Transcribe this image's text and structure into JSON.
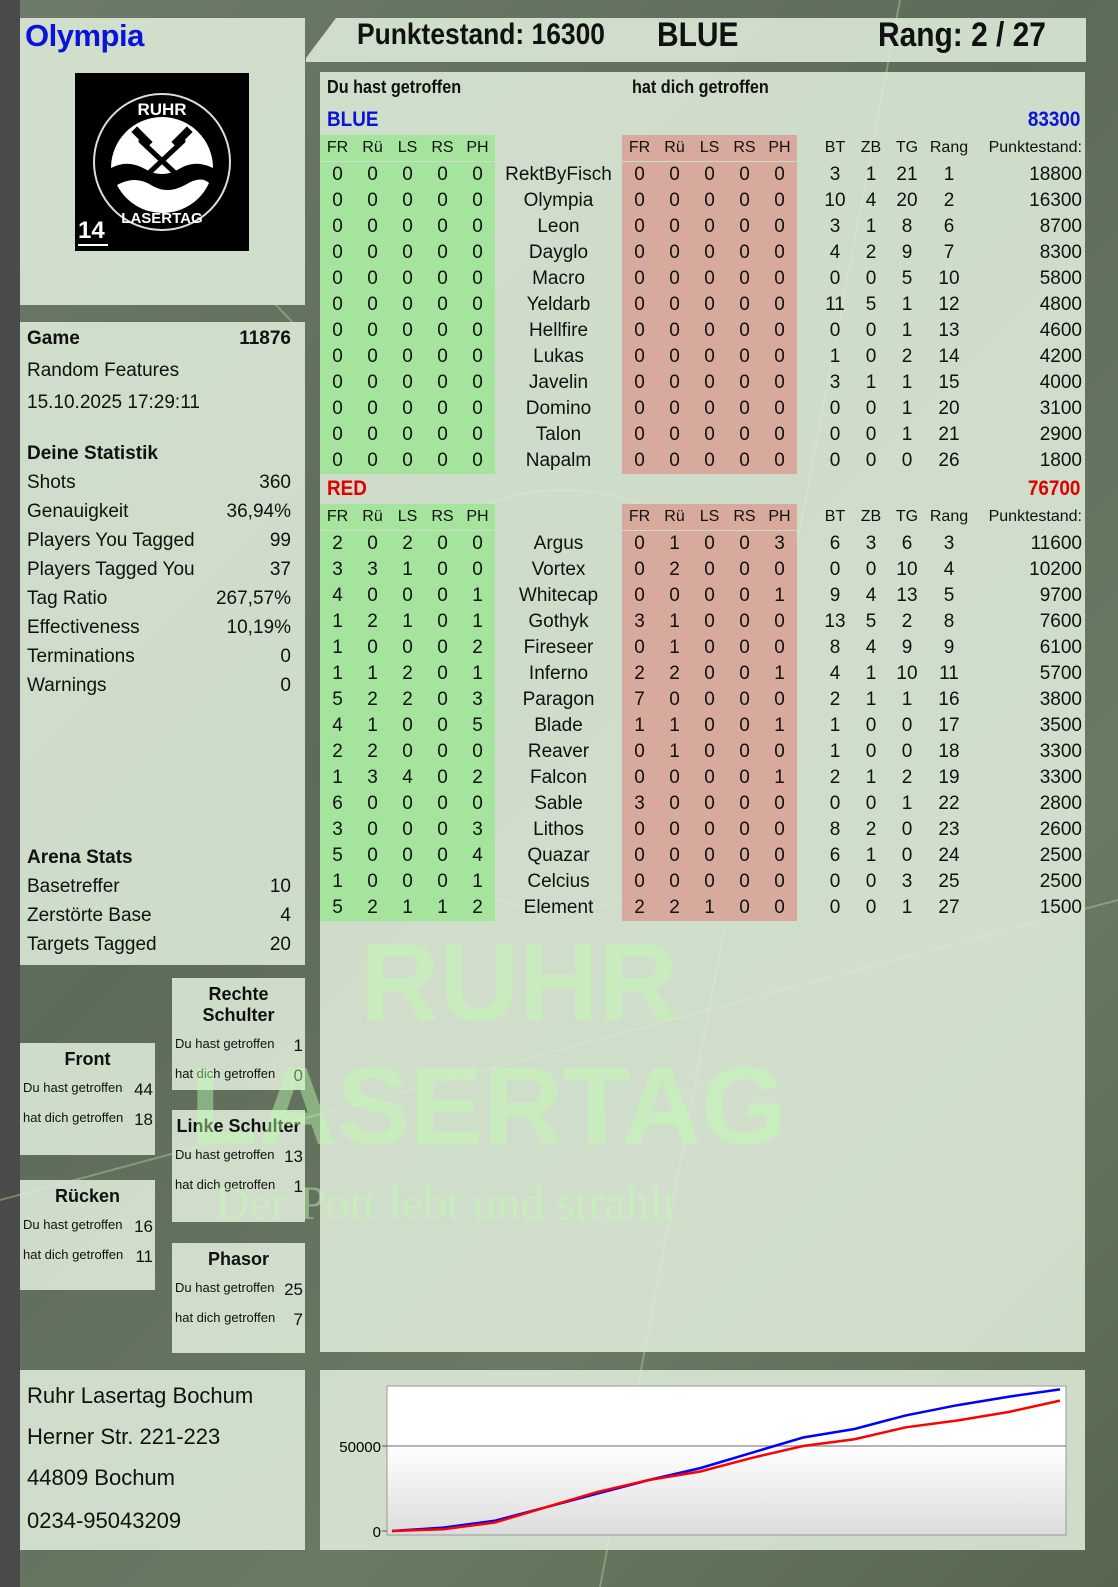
{
  "player": {
    "name": "Olympia",
    "score_label": "Punktestand: 16300",
    "team": "BLUE",
    "rank_label": "Rang: 2 / 27"
  },
  "logo": {
    "top": "RUHR",
    "bottom": "LASERTAG",
    "number": "14"
  },
  "watermark": {
    "line1": "RUHR",
    "line2": "LASERTAG",
    "slogan": "Der Pott lebt und strahlt"
  },
  "table": {
    "you_hit": "Du hast getroffen",
    "hit_you": "hat dich getroffen",
    "hit_cols": [
      "FR",
      "Rü",
      "LS",
      "RS",
      "PH"
    ],
    "stat_cols": [
      "BT",
      "ZB",
      "TG",
      "Rang",
      "Punktestand:"
    ],
    "teams": [
      {
        "name": "BLUE",
        "total": "83300",
        "color": "#0a14d8",
        "players": [
          {
            "name": "RektByFisch",
            "hit": [
              0,
              0,
              0,
              0,
              0
            ],
            "got": [
              0,
              0,
              0,
              0,
              0
            ],
            "stats": [
              3,
              1,
              21,
              1,
              18800
            ]
          },
          {
            "name": "Olympia",
            "hit": [
              0,
              0,
              0,
              0,
              0
            ],
            "got": [
              0,
              0,
              0,
              0,
              0
            ],
            "stats": [
              10,
              4,
              20,
              2,
              16300
            ]
          },
          {
            "name": "Leon",
            "hit": [
              0,
              0,
              0,
              0,
              0
            ],
            "got": [
              0,
              0,
              0,
              0,
              0
            ],
            "stats": [
              3,
              1,
              8,
              6,
              8700
            ]
          },
          {
            "name": "Dayglo",
            "hit": [
              0,
              0,
              0,
              0,
              0
            ],
            "got": [
              0,
              0,
              0,
              0,
              0
            ],
            "stats": [
              4,
              2,
              9,
              7,
              8300
            ]
          },
          {
            "name": "Macro",
            "hit": [
              0,
              0,
              0,
              0,
              0
            ],
            "got": [
              0,
              0,
              0,
              0,
              0
            ],
            "stats": [
              0,
              0,
              5,
              10,
              5800
            ]
          },
          {
            "name": "Yeldarb",
            "hit": [
              0,
              0,
              0,
              0,
              0
            ],
            "got": [
              0,
              0,
              0,
              0,
              0
            ],
            "stats": [
              11,
              5,
              1,
              12,
              4800
            ]
          },
          {
            "name": "Hellfire",
            "hit": [
              0,
              0,
              0,
              0,
              0
            ],
            "got": [
              0,
              0,
              0,
              0,
              0
            ],
            "stats": [
              0,
              0,
              1,
              13,
              4600
            ]
          },
          {
            "name": "Lukas",
            "hit": [
              0,
              0,
              0,
              0,
              0
            ],
            "got": [
              0,
              0,
              0,
              0,
              0
            ],
            "stats": [
              1,
              0,
              2,
              14,
              4200
            ]
          },
          {
            "name": "Javelin",
            "hit": [
              0,
              0,
              0,
              0,
              0
            ],
            "got": [
              0,
              0,
              0,
              0,
              0
            ],
            "stats": [
              3,
              1,
              1,
              15,
              4000
            ]
          },
          {
            "name": "Domino",
            "hit": [
              0,
              0,
              0,
              0,
              0
            ],
            "got": [
              0,
              0,
              0,
              0,
              0
            ],
            "stats": [
              0,
              0,
              1,
              20,
              3100
            ]
          },
          {
            "name": "Talon",
            "hit": [
              0,
              0,
              0,
              0,
              0
            ],
            "got": [
              0,
              0,
              0,
              0,
              0
            ],
            "stats": [
              0,
              0,
              1,
              21,
              2900
            ]
          },
          {
            "name": "Napalm",
            "hit": [
              0,
              0,
              0,
              0,
              0
            ],
            "got": [
              0,
              0,
              0,
              0,
              0
            ],
            "stats": [
              0,
              0,
              0,
              26,
              1800
            ]
          }
        ]
      },
      {
        "name": "RED",
        "total": "76700",
        "color": "#e00000",
        "players": [
          {
            "name": "Argus",
            "hit": [
              2,
              0,
              2,
              0,
              0
            ],
            "got": [
              0,
              1,
              0,
              0,
              3
            ],
            "stats": [
              6,
              3,
              6,
              3,
              11600
            ]
          },
          {
            "name": "Vortex",
            "hit": [
              3,
              3,
              1,
              0,
              0
            ],
            "got": [
              0,
              2,
              0,
              0,
              0
            ],
            "stats": [
              0,
              0,
              10,
              4,
              10200
            ]
          },
          {
            "name": "Whitecap",
            "hit": [
              4,
              0,
              0,
              0,
              1
            ],
            "got": [
              0,
              0,
              0,
              0,
              1
            ],
            "stats": [
              9,
              4,
              13,
              5,
              9700
            ]
          },
          {
            "name": "Gothyk",
            "hit": [
              1,
              2,
              1,
              0,
              1
            ],
            "got": [
              3,
              1,
              0,
              0,
              0
            ],
            "stats": [
              13,
              5,
              2,
              8,
              7600
            ]
          },
          {
            "name": "Fireseer",
            "hit": [
              1,
              0,
              0,
              0,
              2
            ],
            "got": [
              0,
              1,
              0,
              0,
              0
            ],
            "stats": [
              8,
              4,
              9,
              9,
              6100
            ]
          },
          {
            "name": "Inferno",
            "hit": [
              1,
              1,
              2,
              0,
              1
            ],
            "got": [
              2,
              2,
              0,
              0,
              1
            ],
            "stats": [
              4,
              1,
              10,
              11,
              5700
            ]
          },
          {
            "name": "Paragon",
            "hit": [
              5,
              2,
              2,
              0,
              3
            ],
            "got": [
              7,
              0,
              0,
              0,
              0
            ],
            "stats": [
              2,
              1,
              1,
              16,
              3800
            ]
          },
          {
            "name": "Blade",
            "hit": [
              4,
              1,
              0,
              0,
              5
            ],
            "got": [
              1,
              1,
              0,
              0,
              1
            ],
            "stats": [
              1,
              0,
              0,
              17,
              3500
            ]
          },
          {
            "name": "Reaver",
            "hit": [
              2,
              2,
              0,
              0,
              0
            ],
            "got": [
              0,
              1,
              0,
              0,
              0
            ],
            "stats": [
              1,
              0,
              0,
              18,
              3300
            ]
          },
          {
            "name": "Falcon",
            "hit": [
              1,
              3,
              4,
              0,
              2
            ],
            "got": [
              0,
              0,
              0,
              0,
              1
            ],
            "stats": [
              2,
              1,
              2,
              19,
              3300
            ]
          },
          {
            "name": "Sable",
            "hit": [
              6,
              0,
              0,
              0,
              0
            ],
            "got": [
              3,
              0,
              0,
              0,
              0
            ],
            "stats": [
              0,
              0,
              1,
              22,
              2800
            ]
          },
          {
            "name": "Lithos",
            "hit": [
              3,
              0,
              0,
              0,
              3
            ],
            "got": [
              0,
              0,
              0,
              0,
              0
            ],
            "stats": [
              8,
              2,
              0,
              23,
              2600
            ]
          },
          {
            "name": "Quazar",
            "hit": [
              5,
              0,
              0,
              0,
              4
            ],
            "got": [
              0,
              0,
              0,
              0,
              0
            ],
            "stats": [
              6,
              1,
              0,
              24,
              2500
            ]
          },
          {
            "name": "Celcius",
            "hit": [
              1,
              0,
              0,
              0,
              1
            ],
            "got": [
              0,
              0,
              0,
              0,
              0
            ],
            "stats": [
              0,
              0,
              3,
              25,
              2500
            ]
          },
          {
            "name": "Element",
            "hit": [
              5,
              2,
              1,
              1,
              2
            ],
            "got": [
              2,
              2,
              1,
              0,
              0
            ],
            "stats": [
              0,
              0,
              1,
              27,
              1500
            ]
          }
        ]
      }
    ]
  },
  "game": {
    "label": "Game",
    "id": "11876",
    "mode": "Random Features",
    "datetime": "15.10.2025 17:29:11"
  },
  "my_stats": {
    "title": "Deine Statistik",
    "rows": [
      {
        "label": "Shots",
        "value": "360"
      },
      {
        "label": "Genauigkeit",
        "value": "36,94%"
      },
      {
        "label": "Players You Tagged",
        "value": "99"
      },
      {
        "label": "Players Tagged You",
        "value": "37"
      },
      {
        "label": "Tag Ratio",
        "value": "267,57%"
      },
      {
        "label": "Effectiveness",
        "value": "10,19%"
      },
      {
        "label": "Terminations",
        "value": "0"
      },
      {
        "label": "Warnings",
        "value": "0"
      }
    ]
  },
  "arena_stats": {
    "title": "Arena Stats",
    "rows": [
      {
        "label": "Basetreffer",
        "value": "10"
      },
      {
        "label": "Zerstörte Base",
        "value": "4"
      },
      {
        "label": "Targets Tagged",
        "value": "20"
      }
    ]
  },
  "zones": {
    "you_hit": "Du hast getroffen",
    "hit_you": "hat dich getroffen",
    "items": [
      {
        "title": "Rechte Schulter",
        "hit": "1",
        "got": "0"
      },
      {
        "title": "Front",
        "hit": "44",
        "got": "18"
      },
      {
        "title": "Linke Schulter",
        "hit": "13",
        "got": "1"
      },
      {
        "title": "Rücken",
        "hit": "16",
        "got": "11"
      },
      {
        "title": "Phasor",
        "hit": "25",
        "got": "7"
      }
    ]
  },
  "address": {
    "lines": [
      "Ruhr Lasertag Bochum",
      "Herner Str. 221-223",
      "44809 Bochum",
      "0234-95043209"
    ]
  },
  "chart_data": {
    "type": "line",
    "title": "",
    "xlabel": "",
    "ylabel": "",
    "ylim": [
      0,
      85300
    ],
    "yticks": [
      "0",
      "50000"
    ],
    "grid": true,
    "legend": "none",
    "series": [
      {
        "color": "#0000ff",
        "values": [
          0,
          2000,
          6000,
          14000,
          22000,
          30000,
          37000,
          46000,
          55000,
          60000,
          68000,
          74000,
          79000,
          83300
        ]
      },
      {
        "color": "#ff0000",
        "values": [
          0,
          1000,
          5000,
          14000,
          23000,
          30000,
          35000,
          43000,
          50000,
          54000,
          61000,
          65000,
          70000,
          76700
        ]
      }
    ]
  }
}
